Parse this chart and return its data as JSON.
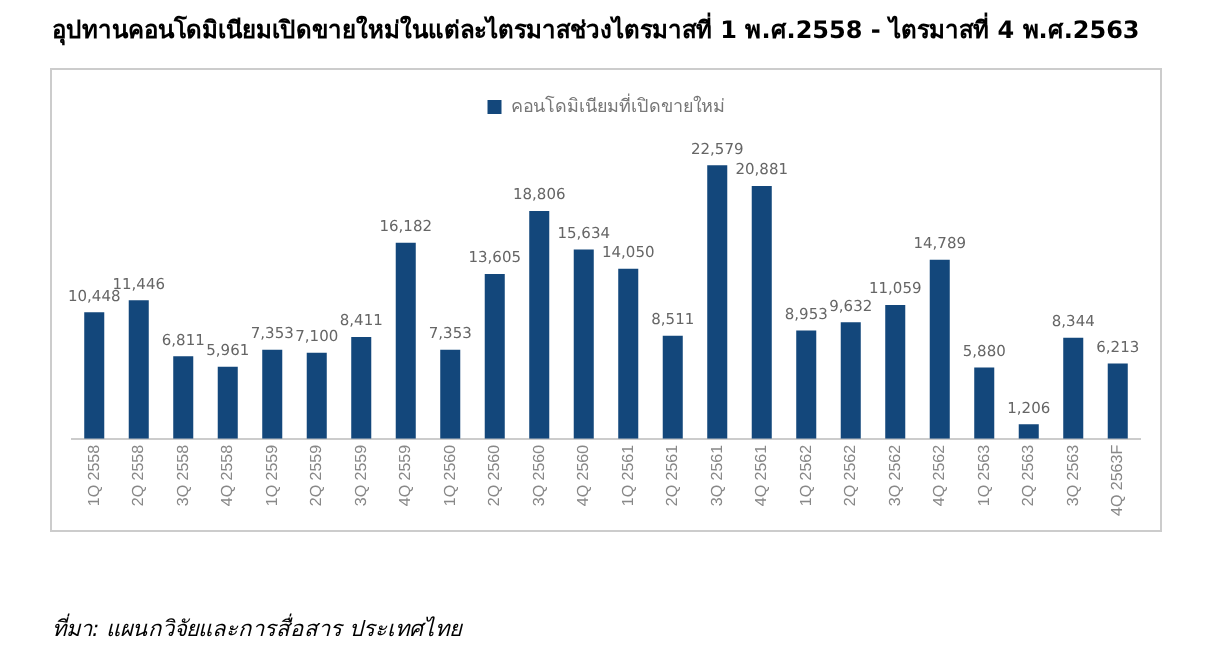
{
  "chart_data": {
    "type": "bar",
    "title": "อุปทานคอนโดมิเนียมเปิดขายใหม่ในแต่ละไตรมาสช่วงไตรมาสที่ 1 พ.ศ.2558 - ไตรมาสที่ 4 พ.ศ.2563",
    "categories": [
      "1Q 2558",
      "2Q 2558",
      "3Q 2558",
      "4Q 2558",
      "1Q 2559",
      "2Q 2559",
      "3Q 2559",
      "4Q 2559",
      "1Q 2560",
      "2Q 2560",
      "3Q 2560",
      "4Q 2560",
      "1Q 2561",
      "2Q 2561",
      "3Q 2561",
      "4Q 2561",
      "1Q 2562",
      "2Q 2562",
      "3Q 2562",
      "4Q 2562",
      "1Q 2563",
      "2Q 2563",
      "3Q 2563",
      "4Q 2563F"
    ],
    "series": [
      {
        "name": "คอนโดมิเนียมที่เปิดขายใหม่",
        "color": "#13477b",
        "values": [
          10448,
          11446,
          6811,
          5961,
          7353,
          7100,
          8411,
          16182,
          7353,
          13605,
          18806,
          15634,
          14050,
          8511,
          22579,
          20881,
          8953,
          9632,
          11059,
          14789,
          5880,
          1206,
          8344,
          6213
        ],
        "value_labels": [
          "10,448",
          "11,446",
          "6,811",
          "5,961",
          "7,353",
          "7,100",
          "8,411",
          "16,182",
          "7,353",
          "13,605",
          "18,806",
          "15,634",
          "14,050",
          "8,511",
          "22,579",
          "20,881",
          "8,953",
          "9,632",
          "11,059",
          "14,789",
          "5,880",
          "1,206",
          "8,344",
          "6,213"
        ]
      }
    ],
    "legend": "top",
    "tick_labels": "x",
    "annotations": [
      "ที่มา: แผนกวิจัยและการสื่อสาร ประเทศไทย"
    ]
  }
}
